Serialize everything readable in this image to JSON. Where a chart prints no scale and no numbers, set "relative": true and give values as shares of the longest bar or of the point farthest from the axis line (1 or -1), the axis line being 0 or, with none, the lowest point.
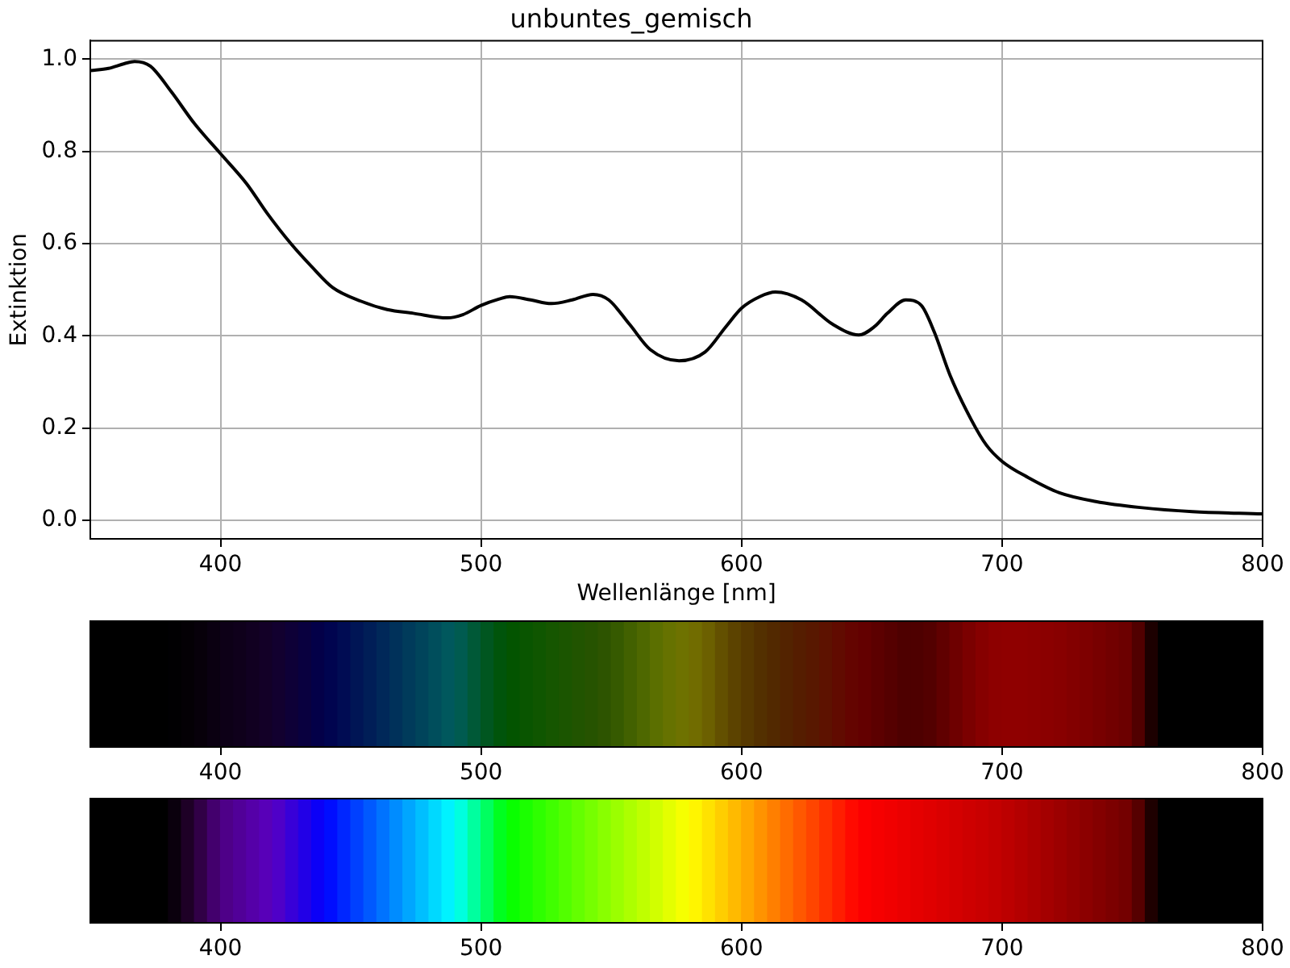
{
  "chart_data": [
    {
      "type": "line",
      "title": "unbuntes_gemisch",
      "xlabel": "Wellenlänge [nm]",
      "ylabel": "Extinktion",
      "x": [
        350,
        357,
        363,
        367,
        373,
        381,
        390,
        400,
        410,
        418,
        427,
        435,
        443,
        454,
        464,
        474,
        487,
        493,
        500,
        507,
        511,
        519,
        527,
        535,
        543,
        549,
        557,
        565,
        576,
        586,
        594,
        600,
        607,
        613,
        623,
        635,
        645,
        651,
        656,
        663,
        669,
        674,
        680,
        688,
        694,
        700,
        710,
        722,
        736,
        753,
        773,
        800
      ],
      "values": [
        0.975,
        0.98,
        0.99,
        0.995,
        0.985,
        0.93,
        0.86,
        0.795,
        0.73,
        0.665,
        0.6,
        0.55,
        0.505,
        0.475,
        0.457,
        0.449,
        0.439,
        0.446,
        0.466,
        0.48,
        0.485,
        0.478,
        0.47,
        0.478,
        0.49,
        0.478,
        0.425,
        0.37,
        0.346,
        0.365,
        0.42,
        0.46,
        0.485,
        0.495,
        0.478,
        0.425,
        0.402,
        0.42,
        0.449,
        0.478,
        0.466,
        0.408,
        0.315,
        0.22,
        0.163,
        0.128,
        0.093,
        0.06,
        0.041,
        0.028,
        0.019,
        0.014
      ],
      "color": "#000000",
      "xlim": [
        350,
        800
      ],
      "ylim": [
        -0.04,
        1.04
      ],
      "xticks": [
        400,
        500,
        600,
        700,
        800
      ],
      "yticks": [
        {
          "value": 0,
          "label": "0.0"
        },
        {
          "value": 0.2,
          "label": "0.2"
        },
        {
          "value": 0.4,
          "label": "0.4"
        },
        {
          "value": 0.6,
          "label": "0.6"
        },
        {
          "value": 0.8,
          "label": "0.8"
        },
        {
          "value": 1,
          "label": "1.0"
        }
      ],
      "grid": true
    },
    {
      "type": "bar",
      "relative": true,
      "x": [
        352.5,
        357.5,
        362.5,
        367.5,
        372.5,
        377.5,
        382.5,
        387.5,
        392.5,
        397.5,
        402.5,
        407.5,
        412.5,
        417.5,
        422.5,
        427.5,
        432.5,
        437.5,
        442.5,
        447.5,
        452.5,
        457.5,
        462.5,
        467.5,
        472.5,
        477.5,
        482.5,
        487.5,
        492.5,
        497.5,
        502.5,
        507.5,
        512.5,
        517.5,
        522.5,
        527.5,
        532.5,
        537.5,
        542.5,
        547.5,
        552.5,
        557.5,
        562.5,
        567.5,
        572.5,
        577.5,
        582.5,
        587.5,
        592.5,
        597.5,
        602.5,
        607.5,
        612.5,
        617.5,
        622.5,
        627.5,
        632.5,
        637.5,
        642.5,
        647.5,
        652.5,
        657.5,
        662.5,
        667.5,
        672.5,
        677.5,
        682.5,
        687.5,
        692.5,
        697.5,
        702.5,
        707.5,
        712.5,
        717.5,
        722.5,
        727.5,
        732.5,
        737.5,
        742.5,
        747.5,
        752.5,
        757.5,
        762.5,
        767.5,
        772.5,
        777.5,
        782.5,
        787.5,
        792.5,
        797.5
      ],
      "values": [
        1,
        1,
        1,
        1,
        1,
        1,
        1,
        1,
        1,
        1,
        1,
        1,
        1,
        1,
        1,
        1,
        1,
        1,
        1,
        1,
        1,
        1,
        1,
        1,
        1,
        1,
        1,
        1,
        1,
        1,
        1,
        1,
        1,
        1,
        1,
        1,
        1,
        1,
        1,
        1,
        1,
        1,
        1,
        1,
        1,
        1,
        1,
        1,
        1,
        1,
        1,
        1,
        1,
        1,
        1,
        1,
        1,
        1,
        1,
        1,
        1,
        1,
        1,
        1,
        1,
        1,
        1,
        1,
        1,
        1,
        1,
        1,
        1,
        1,
        1,
        1,
        1,
        1,
        1,
        1,
        1,
        1,
        1,
        1,
        1,
        1,
        1,
        1,
        1,
        1
      ],
      "colors": [
        "#000000",
        "#000000",
        "#000000",
        "#000000",
        "#000000",
        "#000000",
        "#010002",
        "#040005",
        "#07000a",
        "#0a0011",
        "#0d0017",
        "#0f001b",
        "#110021",
        "#130027",
        "#12002f",
        "#0e0037",
        "#09003f",
        "#030048",
        "#00044f",
        "#000c53",
        "#001555",
        "#001e57",
        "#002859",
        "#00315a",
        "#003b5b",
        "#00445b",
        "#004e5c",
        "#00585d",
        "#005b50",
        "#005937",
        "#005620",
        "#00540b",
        "#035400",
        "#095500",
        "#0f5600",
        "#165600",
        "#1b5500",
        "#215400",
        "#265300",
        "#2d5400",
        "#365a00",
        "#426100",
        "#4e6800",
        "#5b6f00",
        "#667200",
        "#6e7200",
        "#716c00",
        "#6c6000",
        "#635000",
        "#5c4300",
        "#573900",
        "#533000",
        "#522900",
        "#532300",
        "#551d00",
        "#581800",
        "#5d1200",
        "#610b00",
        "#640400",
        "#630000",
        "#5c0000",
        "#550000",
        "#4e0000",
        "#4e0000",
        "#530000",
        "#600000",
        "#6e0000",
        "#7b0000",
        "#860000",
        "#8d0000",
        "#8f0000",
        "#8f0000",
        "#8d0000",
        "#8b0000",
        "#880000",
        "#830000",
        "#7e0000",
        "#780000",
        "#720000",
        "#6c0000",
        "#510000",
        "#1c0000",
        "#000000",
        "#000000",
        "#000000",
        "#000000",
        "#000000",
        "#000000",
        "#000000",
        "#000000"
      ],
      "xlim": [
        350,
        800
      ],
      "xticks": [
        400,
        500,
        600,
        700,
        800
      ]
    },
    {
      "type": "bar",
      "relative": true,
      "x": [
        352.5,
        357.5,
        362.5,
        367.5,
        372.5,
        377.5,
        382.5,
        387.5,
        392.5,
        397.5,
        402.5,
        407.5,
        412.5,
        417.5,
        422.5,
        427.5,
        432.5,
        437.5,
        442.5,
        447.5,
        452.5,
        457.5,
        462.5,
        467.5,
        472.5,
        477.5,
        482.5,
        487.5,
        492.5,
        497.5,
        502.5,
        507.5,
        512.5,
        517.5,
        522.5,
        527.5,
        532.5,
        537.5,
        542.5,
        547.5,
        552.5,
        557.5,
        562.5,
        567.5,
        572.5,
        577.5,
        582.5,
        587.5,
        592.5,
        597.5,
        602.5,
        607.5,
        612.5,
        617.5,
        622.5,
        627.5,
        632.5,
        637.5,
        642.5,
        647.5,
        652.5,
        657.5,
        662.5,
        667.5,
        672.5,
        677.5,
        682.5,
        687.5,
        692.5,
        697.5,
        702.5,
        707.5,
        712.5,
        717.5,
        722.5,
        727.5,
        732.5,
        737.5,
        742.5,
        747.5,
        752.5,
        757.5,
        762.5,
        767.5,
        772.5,
        777.5,
        782.5,
        787.5,
        792.5,
        797.5
      ],
      "values": [
        1,
        1,
        1,
        1,
        1,
        1,
        1,
        1,
        1,
        1,
        1,
        1,
        1,
        1,
        1,
        1,
        1,
        1,
        1,
        1,
        1,
        1,
        1,
        1,
        1,
        1,
        1,
        1,
        1,
        1,
        1,
        1,
        1,
        1,
        1,
        1,
        1,
        1,
        1,
        1,
        1,
        1,
        1,
        1,
        1,
        1,
        1,
        1,
        1,
        1,
        1,
        1,
        1,
        1,
        1,
        1,
        1,
        1,
        1,
        1,
        1,
        1,
        1,
        1,
        1,
        1,
        1,
        1,
        1,
        1,
        1,
        1,
        1,
        1,
        1,
        1,
        1,
        1,
        1,
        1,
        1,
        1,
        1,
        1,
        1,
        1,
        1,
        1,
        1,
        1
      ],
      "colors": [
        "#000000",
        "#000000",
        "#000000",
        "#000000",
        "#000000",
        "#000000",
        "#0a000d",
        "#1e0026",
        "#310046",
        "#43006d",
        "#4e0088",
        "#510098",
        "#5500a8",
        "#5800b8",
        "#4f00c8",
        "#3800d8",
        "#2200e7",
        "#0b00f7",
        "#000dff",
        "#0026ff",
        "#0040ff",
        "#0059ff",
        "#0073ff",
        "#008cff",
        "#00a6ff",
        "#00bfff",
        "#00d9ff",
        "#00f2ff",
        "#00ffdf",
        "#00ff9f",
        "#00ff60",
        "#00ff20",
        "#09ff00",
        "#1bff00",
        "#2eff00",
        "#40ff00",
        "#52ff00",
        "#64ff00",
        "#76ff00",
        "#89ff00",
        "#9bff00",
        "#adff00",
        "#bfff00",
        "#d1ff00",
        "#e4ff00",
        "#f6ff00",
        "#fff500",
        "#ffe200",
        "#ffce00",
        "#ffba00",
        "#ffa700",
        "#ff9300",
        "#ff7f00",
        "#ff6c00",
        "#ff5800",
        "#ff4500",
        "#ff3100",
        "#ff1e00",
        "#ff0a00",
        "#fc0000",
        "#f60000",
        "#f10000",
        "#eb0000",
        "#e50000",
        "#e00000",
        "#da0000",
        "#d40000",
        "#ce0000",
        "#c90000",
        "#c30000",
        "#bc0000",
        "#b40000",
        "#ac0000",
        "#a40000",
        "#9c0000",
        "#940000",
        "#8c0000",
        "#840000",
        "#7c0000",
        "#740000",
        "#560000",
        "#1e0000",
        "#000000",
        "#000000",
        "#000000",
        "#000000",
        "#000000",
        "#000000",
        "#000000",
        "#000000"
      ],
      "xlim": [
        350,
        800
      ],
      "xticks": [
        400,
        500,
        600,
        700,
        800
      ]
    }
  ]
}
